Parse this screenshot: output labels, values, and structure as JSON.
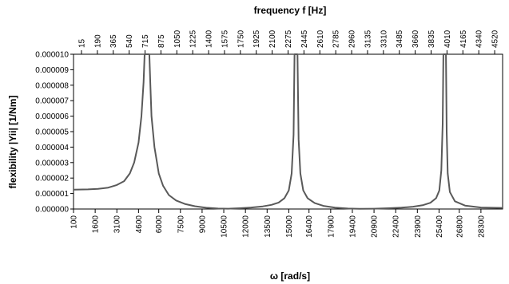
{
  "chart_data": {
    "type": "line",
    "title": "",
    "xlabel": "ω [rad/s]",
    "ylabel": "flexibility |Yii| [1/Nm]",
    "x2label": "frequency f [Hz]",
    "xlim": [
      100,
      29800
    ],
    "ylim": [
      0,
      1e-05
    ],
    "grid": false,
    "legend": "none",
    "line_color": "#595959",
    "x_ticks": [
      100,
      1600,
      3100,
      4600,
      6000,
      7500,
      9000,
      10500,
      12000,
      13500,
      15000,
      16400,
      17900,
      19400,
      20900,
      22400,
      23900,
      25400,
      26800,
      28300
    ],
    "x_tick_labels": [
      "100",
      "1600",
      "3100",
      "4600",
      "6000",
      "7500",
      "9000",
      "10500",
      "12000",
      "13500",
      "15000",
      "16400",
      "17900",
      "19400",
      "20900",
      "22400",
      "23900",
      "25400",
      "26800",
      "28300"
    ],
    "x2_ticks": [
      15,
      190,
      365,
      540,
      715,
      875,
      1050,
      1225,
      1400,
      1575,
      1750,
      1925,
      2100,
      2275,
      2445,
      2610,
      2785,
      2960,
      3135,
      3310,
      3485,
      3660,
      3835,
      4010,
      4165,
      4340,
      4520
    ],
    "x2_tick_labels": [
      "15",
      "190",
      "365",
      "540",
      "715",
      "875",
      "1050",
      "1225",
      "1400",
      "1575",
      "1750",
      "1925",
      "2100",
      "2275",
      "2445",
      "2610",
      "2785",
      "2960",
      "3135",
      "3310",
      "3485",
      "3660",
      "3835",
      "4010",
      "4165",
      "4340",
      "4520"
    ],
    "y_ticks": [
      0,
      1e-06,
      2e-06,
      3e-06,
      4e-06,
      5e-06,
      6e-06,
      7e-06,
      8e-06,
      9e-06,
      1e-05
    ],
    "y_tick_labels": [
      "0.000000",
      "0.000001",
      "0.000002",
      "0.000003",
      "0.000004",
      "0.000005",
      "0.000006",
      "0.000007",
      "0.000008",
      "0.000009",
      "0.000010"
    ],
    "series": [
      {
        "values": [
          [
            100,
            1.25e-06
          ],
          [
            1100,
            1.27e-06
          ],
          [
            1800,
            1.3e-06
          ],
          [
            2500,
            1.38e-06
          ],
          [
            3100,
            1.55e-06
          ],
          [
            3600,
            1.8e-06
          ],
          [
            4000,
            2.3e-06
          ],
          [
            4300,
            3e-06
          ],
          [
            4600,
            4.3e-06
          ],
          [
            4800,
            6e-06
          ],
          [
            4950,
            8.2e-06
          ],
          [
            5020,
            1e-05
          ],
          [
            5350,
            1e-05
          ],
          [
            5420,
            8e-06
          ],
          [
            5500,
            6e-06
          ],
          [
            5700,
            4e-06
          ],
          [
            6000,
            2.3e-06
          ],
          [
            6300,
            1.5e-06
          ],
          [
            6700,
            9e-07
          ],
          [
            7200,
            5.5e-07
          ],
          [
            7800,
            3.3e-07
          ],
          [
            8500,
            1.8e-07
          ],
          [
            9300,
            8e-08
          ],
          [
            10100,
            3e-08
          ],
          [
            10800,
            2e-08
          ],
          [
            11600,
            5e-08
          ],
          [
            12400,
            1e-07
          ],
          [
            13200,
            1.7e-07
          ],
          [
            13800,
            2.7e-07
          ],
          [
            14300,
            4.2e-07
          ],
          [
            14700,
            7e-07
          ],
          [
            15000,
            1.2e-06
          ],
          [
            15200,
            2.3e-06
          ],
          [
            15330,
            4.8e-06
          ],
          [
            15400,
            1e-05
          ],
          [
            15600,
            1e-05
          ],
          [
            15680,
            4.5e-06
          ],
          [
            15800,
            2.3e-06
          ],
          [
            16000,
            1.2e-06
          ],
          [
            16300,
            7e-07
          ],
          [
            16800,
            3.8e-07
          ],
          [
            17400,
            2e-07
          ],
          [
            18200,
            9e-08
          ],
          [
            19100,
            3e-08
          ],
          [
            19900,
            1e-08
          ],
          [
            20900,
            2e-08
          ],
          [
            21900,
            5e-08
          ],
          [
            22800,
            9e-08
          ],
          [
            23600,
            1.5e-07
          ],
          [
            24300,
            2.5e-07
          ],
          [
            24800,
            4e-07
          ],
          [
            25200,
            7e-07
          ],
          [
            25420,
            1.2e-06
          ],
          [
            25560,
            2.5e-06
          ],
          [
            25650,
            5.5e-06
          ],
          [
            25700,
            1e-05
          ],
          [
            25880,
            1e-05
          ],
          [
            25930,
            5e-06
          ],
          [
            26000,
            2.3e-06
          ],
          [
            26150,
            1.1e-06
          ],
          [
            26500,
            5e-07
          ],
          [
            27200,
            2.2e-07
          ],
          [
            28300,
            1e-07
          ],
          [
            29800,
            7e-08
          ]
        ]
      }
    ]
  }
}
